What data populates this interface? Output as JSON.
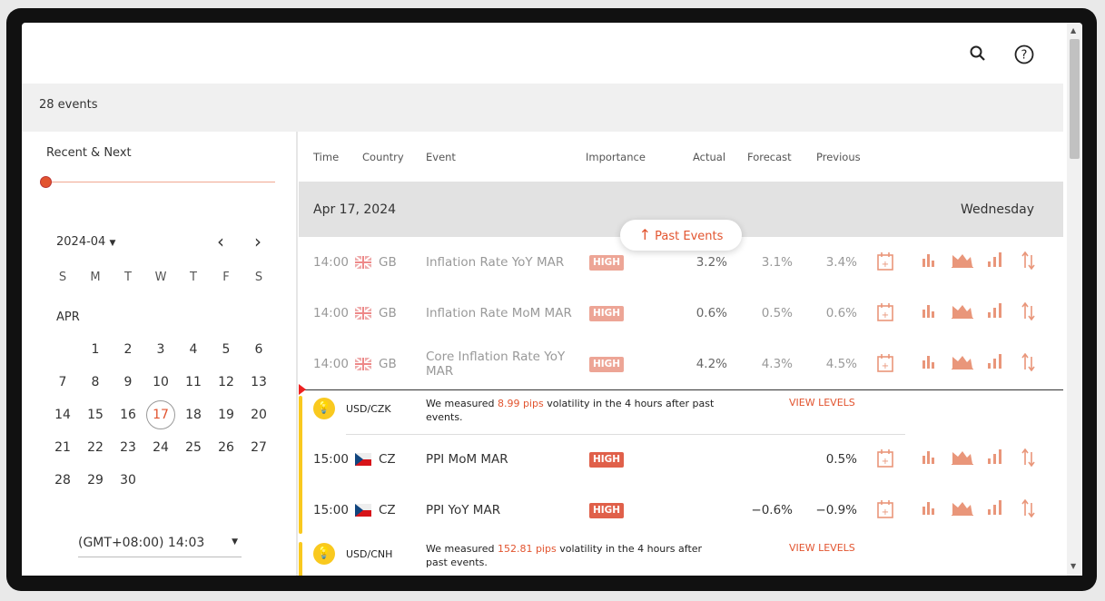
{
  "header": {
    "search_icon": "search-icon",
    "help_icon": "help-circle-icon"
  },
  "topbar": {
    "count": "28 events"
  },
  "left": {
    "filter_label": "Recent & Next",
    "slider_value": 0,
    "month_select": "2024-04",
    "weekdays": [
      "S",
      "M",
      "T",
      "W",
      "T",
      "F",
      "S"
    ],
    "month_label": "APR",
    "days": [
      "",
      "1",
      "2",
      "3",
      "4",
      "5",
      "6",
      "7",
      "8",
      "9",
      "10",
      "11",
      "12",
      "13",
      "14",
      "15",
      "16",
      "17",
      "18",
      "19",
      "20",
      "21",
      "22",
      "23",
      "24",
      "25",
      "26",
      "27",
      "28",
      "29",
      "30"
    ],
    "selected_day": "17",
    "timezone": "(GMT+08:00) 14:03"
  },
  "table": {
    "columns": {
      "time": "Time",
      "country": "Country",
      "event": "Event",
      "importance": "Importance",
      "actual": "Actual",
      "forecast": "Forecast",
      "previous": "Previous"
    },
    "date": "Apr 17, 2024",
    "weekday": "Wednesday",
    "past_events_label": "Past Events",
    "rows": [
      {
        "time": "14:00",
        "country": "GB",
        "event": "Inflation Rate YoY MAR",
        "importance": "HIGH",
        "actual": "3.2%",
        "forecast": "3.1%",
        "previous": "3.4%"
      },
      {
        "time": "14:00",
        "country": "GB",
        "event": "Inflation Rate MoM MAR",
        "importance": "HIGH",
        "actual": "0.6%",
        "forecast": "0.5%",
        "previous": "0.6%"
      },
      {
        "time": "14:00",
        "country": "GB",
        "event": "Core Inflation Rate YoY MAR",
        "importance": "HIGH",
        "actual": "4.2%",
        "forecast": "4.3%",
        "previous": "4.5%"
      },
      {
        "time": "15:00",
        "country": "CZ",
        "event": "PPI MoM MAR",
        "importance": "HIGH",
        "actual": "",
        "forecast": "",
        "previous": "0.5%"
      },
      {
        "time": "15:00",
        "country": "CZ",
        "event": "PPI YoY MAR",
        "importance": "HIGH",
        "actual": "",
        "forecast": "−0.6%",
        "previous": "−0.9%"
      }
    ],
    "volatility": [
      {
        "pair": "USD/CZK",
        "pre": "We measured ",
        "pips": "8.99 pips",
        "post": " volatility in the 4 hours after past",
        "post2": "events.",
        "link": "VIEW LEVELS"
      },
      {
        "pair": "USD/CNH",
        "pre": "We measured ",
        "pips": "152.81 pips",
        "post": " volatility in the 4 hours after",
        "post2": "past events.",
        "link": "VIEW LEVELS"
      }
    ]
  },
  "colors": {
    "accent": "#e2542f",
    "high_badge": "#e0604a",
    "high_badge_past": "#eda596",
    "bulb": "#f9c91f"
  }
}
